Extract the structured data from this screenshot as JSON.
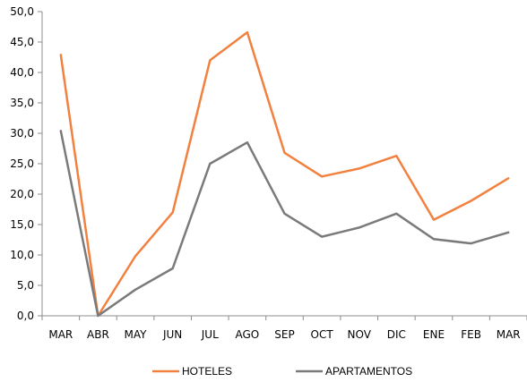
{
  "chart_data": {
    "type": "line",
    "categories": [
      "MAR",
      "ABR",
      "MAY",
      "JUN",
      "JUL",
      "AGO",
      "SEP",
      "OCT",
      "NOV",
      "DIC",
      "ENE",
      "FEB",
      "MAR"
    ],
    "series": [
      {
        "name": "HOTELES",
        "color": "#f28140",
        "values": [
          42.9,
          0.0,
          9.8,
          17.0,
          42.0,
          46.6,
          26.8,
          22.9,
          24.2,
          26.3,
          15.8,
          18.9,
          22.6
        ]
      },
      {
        "name": "APARTAMENTOS",
        "color": "#7a7a7a",
        "values": [
          30.4,
          0.0,
          4.3,
          7.8,
          25.0,
          28.5,
          16.8,
          13.0,
          14.5,
          16.8,
          12.6,
          11.9,
          13.7
        ]
      }
    ],
    "ylim": [
      0,
      50
    ],
    "yticks": [
      "0,0",
      "5,0",
      "10,0",
      "15,0",
      "20,0",
      "25,0",
      "30,0",
      "35,0",
      "40,0",
      "45,0",
      "50,0"
    ],
    "legend_position": "bottom",
    "grid": false,
    "title": "",
    "xlabel": "",
    "ylabel": ""
  }
}
